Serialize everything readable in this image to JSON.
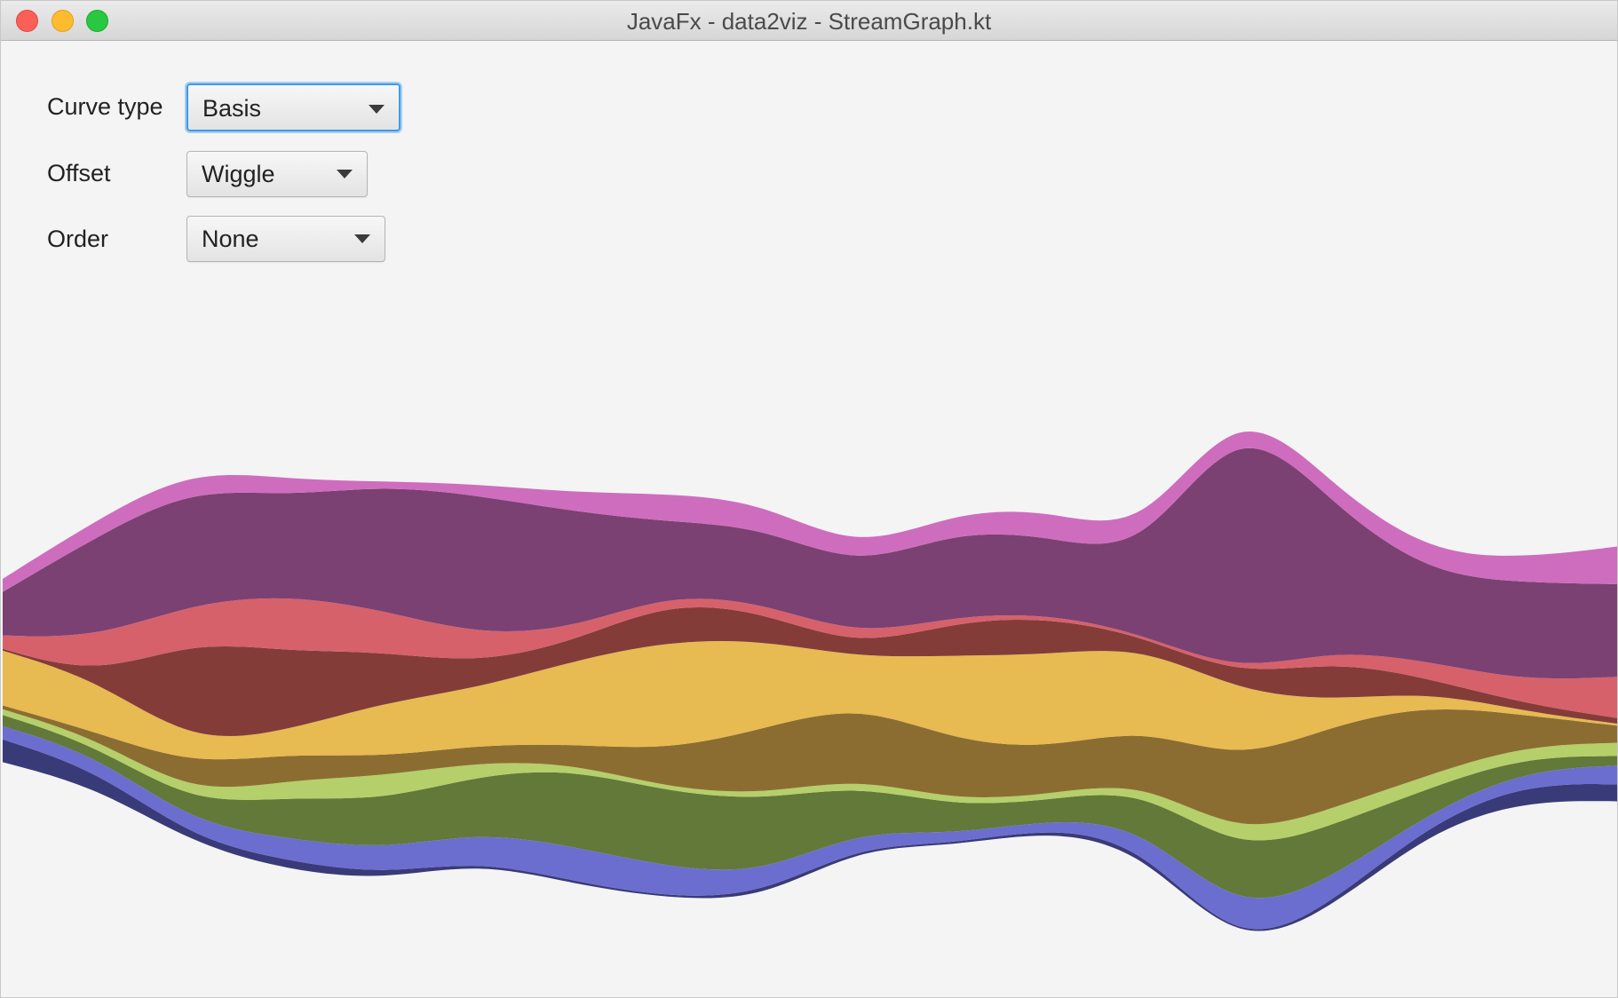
{
  "window": {
    "title": "JavaFx - data2viz - StreamGraph.kt"
  },
  "controls": {
    "curve_type": {
      "label": "Curve type",
      "value": "Basis"
    },
    "offset": {
      "label": "Offset",
      "value": "Wiggle"
    },
    "order": {
      "label": "Order",
      "value": "None"
    }
  },
  "chart_data": {
    "type": "area",
    "stacked": true,
    "offset": "wiggle",
    "curve": "basis",
    "title": "",
    "xlabel": "",
    "ylabel": "",
    "x": [
      0,
      1,
      2,
      3,
      4,
      5,
      6,
      7,
      8,
      9,
      10,
      11,
      12,
      13,
      14,
      15,
      16,
      17
    ],
    "series": [
      {
        "color": "#393b79",
        "values": [
          24,
          18,
          5,
          10,
          6,
          2,
          3,
          1,
          5,
          2,
          2,
          3,
          6,
          0,
          5,
          8,
          18,
          18
        ]
      },
      {
        "color": "#6b6ecf",
        "values": [
          14,
          16,
          16,
          24,
          26,
          30,
          37,
          32,
          22,
          16,
          10,
          8,
          20,
          38,
          26,
          12,
          14,
          20
        ]
      },
      {
        "color": "#637939",
        "values": [
          12,
          10,
          20,
          44,
          52,
          60,
          82,
          80,
          78,
          48,
          30,
          20,
          40,
          66,
          56,
          26,
          14,
          10
        ]
      },
      {
        "color": "#b5cf6b",
        "values": [
          6,
          8,
          10,
          18,
          26,
          14,
          6,
          4,
          6,
          8,
          6,
          6,
          8,
          18,
          18,
          14,
          12,
          14
        ]
      },
      {
        "color": "#8c6d31",
        "values": [
          4,
          6,
          32,
          28,
          20,
          18,
          20,
          40,
          70,
          78,
          64,
          48,
          56,
          80,
          88,
          74,
          32,
          18
        ]
      },
      {
        "color": "#e7ba52",
        "values": [
          58,
          56,
          22,
          24,
          58,
          60,
          88,
          116,
          94,
          48,
          90,
          100,
          86,
          74,
          26,
          14,
          4,
          2
        ]
      },
      {
        "color": "#843c39",
        "values": [
          2,
          4,
          110,
          84,
          54,
          26,
          20,
          42,
          30,
          10,
          36,
          40,
          10,
          16,
          42,
          14,
          8,
          6
        ]
      },
      {
        "color": "#d6616b",
        "values": [
          14,
          40,
          40,
          60,
          44,
          30,
          14,
          8,
          10,
          12,
          6,
          4,
          2,
          4,
          12,
          18,
          24,
          44
        ]
      },
      {
        "color": "#7b4173",
        "values": [
          46,
          108,
          122,
          104,
          132,
          148,
          124,
          76,
          80,
          72,
          90,
          82,
          80,
          280,
          152,
          92,
          104,
          98
        ]
      },
      {
        "color": "#ce6dbd",
        "values": [
          14,
          18,
          20,
          18,
          4,
          12,
          20,
          30,
          26,
          18,
          20,
          28,
          22,
          16,
          20,
          22,
          26,
          40
        ]
      }
    ]
  }
}
